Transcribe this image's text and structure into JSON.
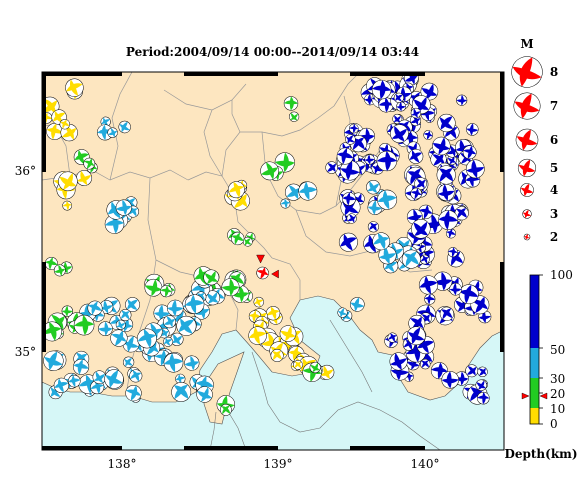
{
  "title": "Period:2004/09/14 00:00--2014/09/14 03:44",
  "axes": {
    "lon_ticks": [
      "138°",
      "139°",
      "140°"
    ],
    "lat_ticks": [
      "36°",
      "35°"
    ],
    "lon_range": [
      137.5,
      140.6
    ],
    "lat_range": [
      34.5,
      36.7
    ]
  },
  "magnitude_legend": {
    "title": "M",
    "items": [
      {
        "label": "8",
        "m": 8
      },
      {
        "label": "7",
        "m": 7
      },
      {
        "label": "6",
        "m": 6
      },
      {
        "label": "5",
        "m": 5
      },
      {
        "label": "4",
        "m": 4
      },
      {
        "label": "3",
        "m": 3
      },
      {
        "label": "2",
        "m": 2
      }
    ]
  },
  "depth_scale": {
    "title": "Depth(km)",
    "ticks": [
      "100",
      "50",
      "30",
      "20",
      "10",
      "0"
    ],
    "colors": {
      "shallow": "#ffdd00",
      "mid": "#22cc22",
      "deep1": "#22aadd",
      "deep2": "#0000cc"
    }
  },
  "colors": {
    "land": "#fde6c0",
    "sea": "#d6f7f7",
    "border": "#000000",
    "highlight": "#ff0000"
  },
  "highlight_event": {
    "lon": 138.98,
    "lat": 35.53,
    "depth_km": 20
  }
}
